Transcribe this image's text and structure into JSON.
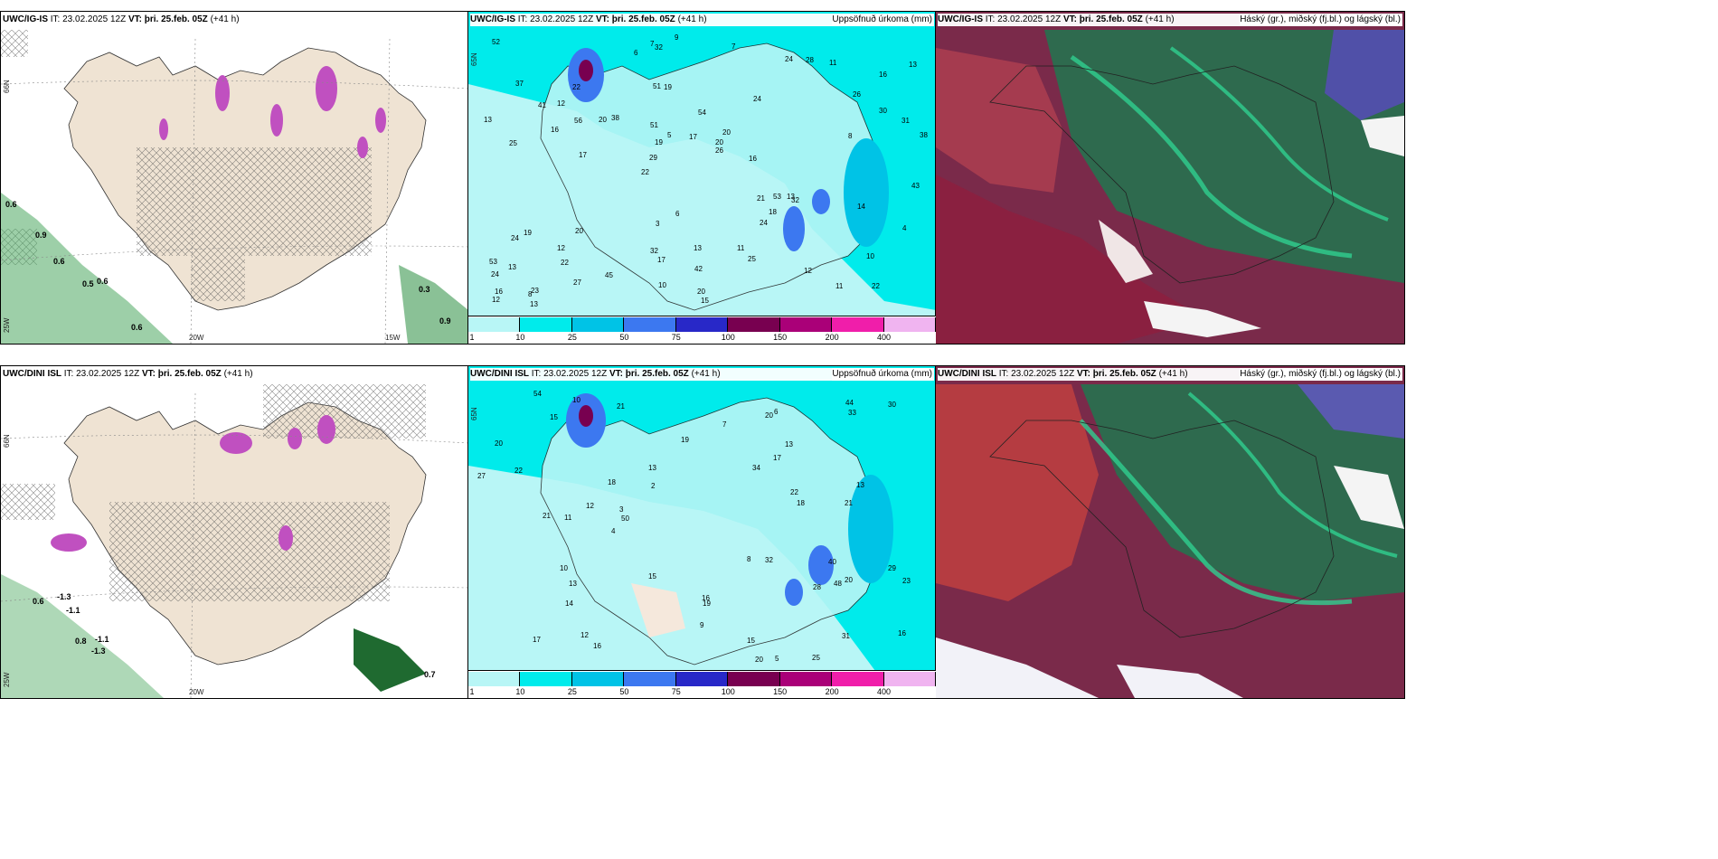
{
  "panels": [
    {
      "id": "p1",
      "title": "UWC/IG-IS",
      "it_label": "IT:",
      "it_value": "23.02.2025 12Z",
      "vt_label": "VT: þri. 25.feb. 05Z",
      "lead": "(+41 h)",
      "right": ""
    },
    {
      "id": "p2",
      "title": "UWC/IG-IS",
      "it_label": "IT:",
      "it_value": "23.02.2025 12Z",
      "vt_label": "VT: þri. 25.feb. 05Z",
      "lead": "(+41 h)",
      "right": "Uppsöfnuð úrkoma (mm)"
    },
    {
      "id": "p3",
      "title": "UWC/IG-IS",
      "it_label": "IT:",
      "it_value": "23.02.2025 12Z",
      "vt_label": "VT: þri. 25.feb. 05Z",
      "lead": "(+41 h)",
      "right": "Háský (gr.), miðský (fj.bl.) og lágský (bl.)"
    },
    {
      "id": "p4",
      "title": "UWC/DINI ISL",
      "it_label": "IT:",
      "it_value": "23.02.2025 12Z",
      "vt_label": "VT: þri. 25.feb. 05Z",
      "lead": "(+41 h)",
      "right": ""
    },
    {
      "id": "p5",
      "title": "UWC/DINI ISL",
      "it_label": "IT:",
      "it_value": "23.02.2025 12Z",
      "vt_label": "VT: þri. 25.feb. 05Z",
      "lead": "(+41 h)",
      "right": "Uppsöfnuð úrkoma (mm)"
    },
    {
      "id": "p6",
      "title": "UWC/DINI ISL",
      "it_label": "IT:",
      "it_value": "23.02.2025 12Z",
      "vt_label": "VT: þri. 25.feb. 05Z",
      "lead": "(+41 h)",
      "right": "Háský (gr.), miðský (fj.bl.) og lágský (bl.)"
    }
  ],
  "axes": {
    "lon_20": "20W",
    "lon_15": "15W",
    "lon_25": "25W",
    "lat_65": "65N",
    "lat_66": "66N"
  },
  "legend": {
    "ticks": [
      "1",
      "10",
      "25",
      "50",
      "75",
      "100",
      "150",
      "200",
      "400"
    ],
    "colors": [
      "#b8f6f6",
      "#00ebeb",
      "#00c3e6",
      "#3c78f0",
      "#2828c8",
      "#780050",
      "#aa0078",
      "#f01eaa",
      "#f0b4f0"
    ]
  },
  "snow_labels_top": [
    "0.6",
    "0.9",
    "0.6",
    "0.5",
    "0.6",
    "0.6",
    "0.3",
    "0.9"
  ],
  "snow_labels_bottom": [
    "0.6",
    "-1.3",
    "-1.1",
    "0.8",
    "-1.1",
    "-1.3",
    "0.7"
  ],
  "precip_top": [
    "22",
    "25",
    "16",
    "22",
    "24",
    "23",
    "51",
    "54",
    "19",
    "38",
    "24",
    "22",
    "19",
    "20",
    "32",
    "37",
    "32",
    "38",
    "21",
    "30",
    "29",
    "32",
    "19",
    "22",
    "24",
    "20",
    "11",
    "10",
    "13",
    "15",
    "20",
    "16",
    "24",
    "27",
    "31",
    "20",
    "16",
    "17",
    "26",
    "24",
    "26",
    "13",
    "18",
    "25",
    "12",
    "13",
    "12",
    "13",
    "11",
    "9",
    "17",
    "13",
    "12",
    "28",
    "8",
    "7",
    "6",
    "5",
    "4",
    "3",
    "45",
    "53",
    "56",
    "53",
    "52",
    "41",
    "43",
    "51",
    "42",
    "17",
    "13",
    "16",
    "14",
    "10",
    "8",
    "6",
    "12",
    "20",
    "11",
    "7"
  ],
  "precip_bottom": [
    "29",
    "25",
    "19",
    "17",
    "16",
    "18",
    "21",
    "13",
    "20",
    "21",
    "32",
    "33",
    "27",
    "22",
    "16",
    "15",
    "14",
    "12",
    "20",
    "19",
    "22",
    "40",
    "31",
    "21",
    "30",
    "34",
    "28",
    "15",
    "10",
    "12",
    "9",
    "13",
    "16",
    "15",
    "23",
    "11",
    "20",
    "44",
    "50",
    "54",
    "48",
    "17",
    "13",
    "10",
    "7",
    "8",
    "2",
    "3",
    "6",
    "5",
    "4",
    "18",
    "13",
    "20"
  ]
}
